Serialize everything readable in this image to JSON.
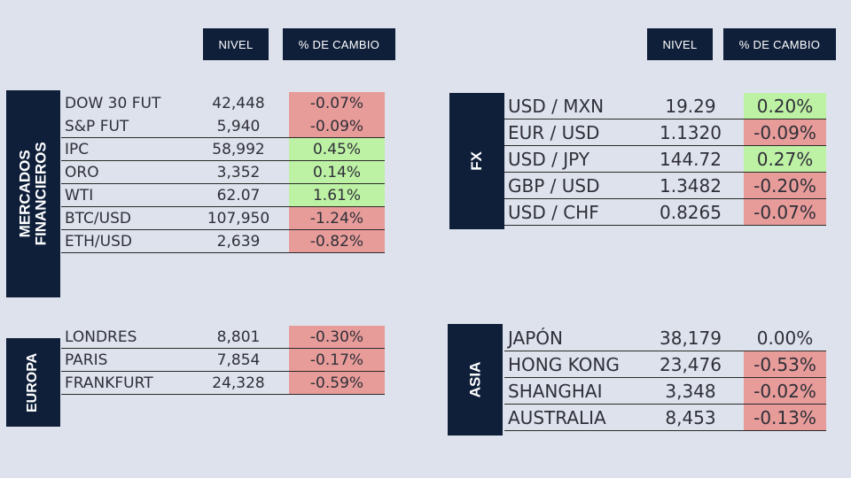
{
  "headers": {
    "nivel": "NIVEL",
    "cambio": "% DE CAMBIO"
  },
  "sections": {
    "mercados": {
      "title": "MERCADOS FINANCIEROS",
      "rows": [
        {
          "name": "DOW 30 FUT",
          "level": "42,448",
          "change": "-0.07%",
          "trend": "neg"
        },
        {
          "name": "S&P FUT",
          "level": "5,940",
          "change": "-0.09%",
          "trend": "neg"
        },
        {
          "name": "IPC",
          "level": "58,992",
          "change": "0.45%",
          "trend": "pos"
        },
        {
          "name": "ORO",
          "level": "3,352",
          "change": "0.14%",
          "trend": "pos"
        },
        {
          "name": "WTI",
          "level": "62.07",
          "change": "1.61%",
          "trend": "pos"
        },
        {
          "name": "BTC/USD",
          "level": "107,950",
          "change": "-1.24%",
          "trend": "neg"
        },
        {
          "name": "ETH/USD",
          "level": "2,639",
          "change": "-0.82%",
          "trend": "neg"
        }
      ]
    },
    "fx": {
      "title": "FX",
      "rows": [
        {
          "name": "USD / MXN",
          "level": "19.29",
          "change": "0.20%",
          "trend": "pos"
        },
        {
          "name": "EUR / USD",
          "level": "1.1320",
          "change": "-0.09%",
          "trend": "neg"
        },
        {
          "name": "USD / JPY",
          "level": "144.72",
          "change": "0.27%",
          "trend": "pos"
        },
        {
          "name": "GBP / USD",
          "level": "1.3482",
          "change": "-0.20%",
          "trend": "neg"
        },
        {
          "name": "USD / CHF",
          "level": "0.8265",
          "change": "-0.07%",
          "trend": "neg"
        }
      ]
    },
    "europa": {
      "title": "EUROPA",
      "rows": [
        {
          "name": "LONDRES",
          "level": "8,801",
          "change": "-0.30%",
          "trend": "neg"
        },
        {
          "name": "PARIS",
          "level": "7,854",
          "change": "-0.17%",
          "trend": "neg"
        },
        {
          "name": "FRANKFURT",
          "level": "24,328",
          "change": "-0.59%",
          "trend": "neg"
        }
      ]
    },
    "asia": {
      "title": "ASIA",
      "rows": [
        {
          "name": "JAPÓN",
          "level": "38,179",
          "change": "0.00%",
          "trend": "neu"
        },
        {
          "name": "HONG KONG",
          "level": "23,476",
          "change": "-0.53%",
          "trend": "neg"
        },
        {
          "name": "SHANGHAI",
          "level": "3,348",
          "change": "-0.02%",
          "trend": "neg"
        },
        {
          "name": "AUSTRALIA",
          "level": "8,453",
          "change": "-0.13%",
          "trend": "neg"
        }
      ]
    }
  },
  "colors": {
    "header_bg": "#0f1f3a",
    "negative": "#e79c9a",
    "positive": "#bdf1a4",
    "background": "#dde2ec"
  }
}
